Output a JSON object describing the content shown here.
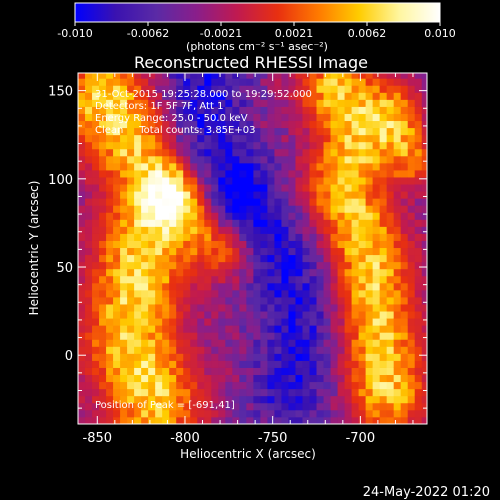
{
  "chart_data": {
    "type": "heatmap",
    "title": "Reconstructed RHESSI Image",
    "xlabel": "Heliocentric X (arcsec)",
    "ylabel": "Heliocentric Y (arcsec)",
    "xlim": [
      -861,
      -662
    ],
    "ylim": [
      -39,
      160
    ],
    "xticks": [
      -850,
      -800,
      -750,
      -700
    ],
    "yticks": [
      0,
      50,
      100,
      150
    ],
    "colorbar": {
      "range": [
        -0.01,
        0.01
      ],
      "ticks": [
        "-0.010",
        "-0.0062",
        "-0.0021",
        "0.0021",
        "0.0062",
        "0.010"
      ],
      "units": "(photons cm⁻² s⁻¹ asec⁻²)",
      "colormap": [
        "#0000ff",
        "#3a12b0",
        "#5a2aa6",
        "#8a1e8a",
        "#c01a50",
        "#e83010",
        "#ff7a00",
        "#ffcc00",
        "#fff6a0",
        "#ffffff"
      ]
    },
    "annotations": {
      "time": "31-Oct-2015 19:25:28.000 to 19:29:52.000",
      "detectors": "Detectors: 1F 5F 7F, Att 1",
      "energy": "Energy Range: 25.0 - 50.0 keV",
      "clean": "Clean     Total counts: 3.85E+03",
      "peak": "Position of Peak = [-691,41]"
    },
    "sources": [
      {
        "path": [
          [
            -845,
            145
          ],
          [
            -828,
            118
          ],
          [
            -815,
            95
          ],
          [
            -825,
            55
          ],
          [
            -832,
            10
          ],
          [
            -818,
            -25
          ]
        ],
        "width": 19,
        "amp": 0.0095
      },
      {
        "path": [
          [
            -806,
            90
          ],
          [
            -790,
            75
          ],
          [
            -778,
            62
          ]
        ],
        "width": 12,
        "amp": 0.0075
      },
      {
        "path": [
          [
            -712,
            150
          ],
          [
            -700,
            125
          ],
          [
            -710,
            95
          ],
          [
            -695,
            55
          ],
          [
            -690,
            20
          ],
          [
            -685,
            -20
          ]
        ],
        "width": 16,
        "amp": 0.0092
      },
      {
        "path": [
          [
            -680,
            140
          ],
          [
            -670,
            110
          ]
        ],
        "width": 10,
        "amp": 0.0055
      }
    ],
    "negative_lobes": [
      {
        "path": [
          [
            -790,
            150
          ],
          [
            -790,
            120
          ],
          [
            -775,
            100
          ]
        ],
        "width": 18,
        "amp": -0.006
      },
      {
        "path": [
          [
            -770,
            80
          ],
          [
            -745,
            60
          ],
          [
            -735,
            20
          ],
          [
            -740,
            -20
          ]
        ],
        "width": 16,
        "amp": -0.0055
      }
    ],
    "background": -0.0032
  },
  "footer": {
    "date": "24-May-2022 01:20"
  }
}
